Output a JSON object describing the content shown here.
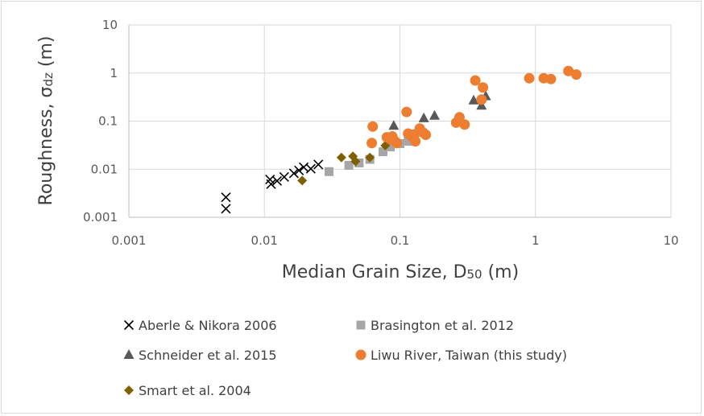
{
  "chart_data": {
    "type": "scatter",
    "title": "",
    "xlabel": {
      "main": "Median Grain Size, D",
      "sub": "50",
      "unit": " (m)"
    },
    "ylabel": {
      "main": "Roughness, σ",
      "sub": "dz",
      "unit": " (m)"
    },
    "xscale": "log",
    "yscale": "log",
    "xlim": [
      0.001,
      10
    ],
    "ylim": [
      0.001,
      10
    ],
    "xticks": [
      "0.001",
      "0.01",
      "0.1",
      "1",
      "10"
    ],
    "yticks": [
      "0.001",
      "0.01",
      "0.1",
      "1",
      "10"
    ],
    "grid": true,
    "legend_position": "bottom",
    "series": [
      {
        "name": "Aberle & Nikora 2006",
        "marker": "x",
        "color": "#000000",
        "points": [
          [
            0.0052,
            0.0026
          ],
          [
            0.0052,
            0.0015
          ],
          [
            0.011,
            0.0061
          ],
          [
            0.0112,
            0.0049
          ],
          [
            0.0124,
            0.0057
          ],
          [
            0.014,
            0.0069
          ],
          [
            0.0165,
            0.0082
          ],
          [
            0.018,
            0.0094
          ],
          [
            0.0195,
            0.011
          ],
          [
            0.022,
            0.0102
          ],
          [
            0.025,
            0.0125
          ]
        ]
      },
      {
        "name": "Brasington et al. 2012",
        "marker": "square",
        "color": "#a6a6a6",
        "points": [
          [
            0.03,
            0.0089
          ],
          [
            0.042,
            0.012
          ],
          [
            0.05,
            0.0135
          ],
          [
            0.06,
            0.016
          ],
          [
            0.075,
            0.023
          ],
          [
            0.085,
            0.029
          ],
          [
            0.1,
            0.034
          ],
          [
            0.115,
            0.038
          ]
        ]
      },
      {
        "name": "Schneider et al. 2015",
        "marker": "triangle",
        "color": "#595959",
        "points": [
          [
            0.09,
            0.08
          ],
          [
            0.15,
            0.115
          ],
          [
            0.18,
            0.13
          ],
          [
            0.35,
            0.27
          ],
          [
            0.4,
            0.21
          ],
          [
            0.43,
            0.33
          ]
        ]
      },
      {
        "name": "Liwu River, Taiwan (this study)",
        "marker": "circle",
        "color": "#ed7d31",
        "points": [
          [
            0.063,
            0.077
          ],
          [
            0.062,
            0.035
          ],
          [
            0.08,
            0.046
          ],
          [
            0.085,
            0.042
          ],
          [
            0.088,
            0.048
          ],
          [
            0.092,
            0.038
          ],
          [
            0.095,
            0.035
          ],
          [
            0.112,
            0.155
          ],
          [
            0.115,
            0.055
          ],
          [
            0.122,
            0.048
          ],
          [
            0.128,
            0.053
          ],
          [
            0.13,
            0.038
          ],
          [
            0.14,
            0.07
          ],
          [
            0.148,
            0.058
          ],
          [
            0.155,
            0.052
          ],
          [
            0.26,
            0.093
          ],
          [
            0.275,
            0.12
          ],
          [
            0.3,
            0.085
          ],
          [
            0.36,
            0.7
          ],
          [
            0.4,
            0.28
          ],
          [
            0.41,
            0.5
          ],
          [
            0.9,
            0.78
          ],
          [
            1.15,
            0.78
          ],
          [
            1.3,
            0.75
          ],
          [
            1.75,
            1.1
          ],
          [
            2.0,
            0.93
          ]
        ]
      },
      {
        "name": "Smart et al. 2004",
        "marker": "diamond",
        "color": "#7f6000",
        "points": [
          [
            0.019,
            0.0058
          ],
          [
            0.037,
            0.0175
          ],
          [
            0.045,
            0.0185
          ],
          [
            0.047,
            0.0145
          ],
          [
            0.06,
            0.0175
          ],
          [
            0.078,
            0.031
          ]
        ]
      }
    ]
  }
}
